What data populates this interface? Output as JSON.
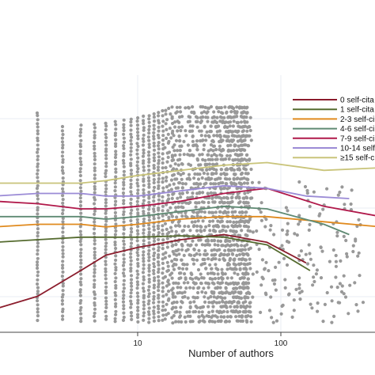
{
  "chart_data": {
    "type": "scatter",
    "title": "",
    "xlabel": "Number of authors",
    "ylabel": "",
    "x_scale": "log",
    "xlim": [
      1,
      500
    ],
    "x_ticks": [
      {
        "value": 10,
        "label": "10"
      },
      {
        "value": 100,
        "label": "100"
      }
    ],
    "grid": true,
    "legend_position": "top-right",
    "scatter_color": "#999999",
    "series": [
      {
        "name": "0 self-cita",
        "color": "#8b1c2c",
        "x": [
          1,
          2,
          4,
          6,
          10,
          20,
          40,
          80,
          150
        ],
        "y": [
          0.09,
          0.14,
          0.24,
          0.3,
          0.33,
          0.36,
          0.38,
          0.35,
          0.27
        ]
      },
      {
        "name": "1 self-cita",
        "color": "#556b2f",
        "x": [
          1,
          2,
          4,
          6,
          10,
          20,
          40,
          80,
          160
        ],
        "y": [
          0.35,
          0.36,
          0.37,
          0.37,
          0.37,
          0.375,
          0.37,
          0.34,
          0.24
        ]
      },
      {
        "name": "2-3 self-ci",
        "color": "#e08a1e",
        "x": [
          1,
          2,
          4,
          6,
          10,
          20,
          40,
          80,
          200,
          500
        ],
        "y": [
          0.41,
          0.42,
          0.42,
          0.41,
          0.42,
          0.44,
          0.45,
          0.45,
          0.43,
          0.41
        ]
      },
      {
        "name": "4-6 self-ci",
        "color": "#5f8a73",
        "x": [
          1,
          2,
          4,
          6,
          10,
          20,
          40,
          80,
          200,
          300
        ],
        "y": [
          0.45,
          0.45,
          0.45,
          0.44,
          0.45,
          0.47,
          0.49,
          0.48,
          0.42,
          0.38
        ]
      },
      {
        "name": "7-9 self-ci",
        "color": "#b0184a",
        "x": [
          1,
          2,
          4,
          6,
          10,
          20,
          40,
          80,
          200,
          500
        ],
        "y": [
          0.51,
          0.5,
          0.48,
          0.48,
          0.49,
          0.51,
          0.54,
          0.56,
          0.49,
          0.45
        ]
      },
      {
        "name": "10-14 self-",
        "color": "#9b8bd6",
        "x": [
          1,
          2,
          4,
          6,
          10,
          20,
          40,
          80,
          150,
          300
        ],
        "y": [
          0.53,
          0.54,
          0.54,
          0.53,
          0.53,
          0.55,
          0.57,
          0.56,
          0.53,
          0.52
        ]
      },
      {
        "name": "≥15 self-c",
        "color": "#c9c47a",
        "x": [
          1,
          2,
          4,
          6,
          10,
          20,
          40,
          80,
          200,
          500
        ],
        "y": [
          0.58,
          0.58,
          0.58,
          0.59,
          0.61,
          0.63,
          0.65,
          0.66,
          0.63,
          0.64
        ]
      }
    ]
  }
}
